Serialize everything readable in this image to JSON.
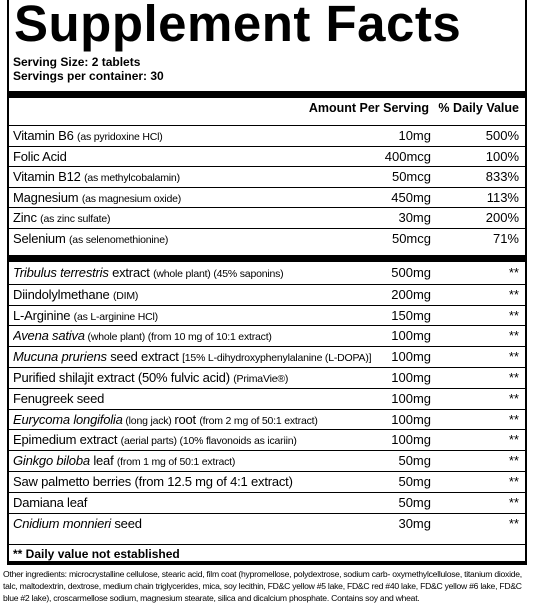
{
  "title": "Supplement Facts",
  "serving_size": "Serving Size: 2 tablets",
  "servings_per_container": "Servings per container: 30",
  "header": {
    "amount": "Amount Per Serving",
    "daily_value": "% Daily Value"
  },
  "sections": [
    {
      "rows": [
        {
          "name": [
            {
              "text": "Vitamin B6 "
            },
            {
              "text": "(as pyridoxine HCl)",
              "style": "small"
            }
          ],
          "amount": "10mg",
          "daily_value": "500%"
        },
        {
          "name": [
            {
              "text": "Folic Acid"
            }
          ],
          "amount": "400mcg",
          "daily_value": "100%"
        },
        {
          "name": [
            {
              "text": "Vitamin B12 "
            },
            {
              "text": "(as methylcobalamin)",
              "style": "small"
            }
          ],
          "amount": "50mcg",
          "daily_value": "833%"
        },
        {
          "name": [
            {
              "text": "Magnesium "
            },
            {
              "text": "(as magnesium oxide)",
              "style": "small"
            }
          ],
          "amount": "450mg",
          "daily_value": "113%"
        },
        {
          "name": [
            {
              "text": "Zinc "
            },
            {
              "text": "(as zinc sulfate)",
              "style": "small"
            }
          ],
          "amount": "30mg",
          "daily_value": "200%"
        },
        {
          "name": [
            {
              "text": "Selenium "
            },
            {
              "text": "(as selenomethionine)",
              "style": "small"
            }
          ],
          "amount": "50mcg",
          "daily_value": "71%"
        }
      ]
    },
    {
      "rows": [
        {
          "name": [
            {
              "text": "Tribulus terrestris",
              "style": "italic"
            },
            {
              "text": " extract "
            },
            {
              "text": "(whole plant) (45% saponins)",
              "style": "small"
            }
          ],
          "amount": "500mg",
          "daily_value": "**"
        },
        {
          "name": [
            {
              "text": "Diindolylmethane "
            },
            {
              "text": "(DIM)",
              "style": "small"
            }
          ],
          "amount": "200mg",
          "daily_value": "**"
        },
        {
          "name": [
            {
              "text": "L-Arginine "
            },
            {
              "text": "(as L-arginine HCl)",
              "style": "small"
            }
          ],
          "amount": "150mg",
          "daily_value": "**"
        },
        {
          "name": [
            {
              "text": "Avena sativa",
              "style": "italic"
            },
            {
              "text": " (whole plant) (from 10 mg of 10:1 extract)",
              "style": "small"
            }
          ],
          "amount": "100mg",
          "daily_value": "**"
        },
        {
          "name": [
            {
              "text": "Mucuna pruriens",
              "style": "italic"
            },
            {
              "text": " seed extract "
            },
            {
              "text": "[15% L-dihydroxyphenylalanine (L-DOPA)]",
              "style": "small"
            }
          ],
          "amount": "100mg",
          "daily_value": "**"
        },
        {
          "name": [
            {
              "text": "Purified shilajit extract (50% fulvic acid) "
            },
            {
              "text": "(PrimaVie®)",
              "style": "small"
            }
          ],
          "amount": "100mg",
          "daily_value": "**"
        },
        {
          "name": [
            {
              "text": "Fenugreek seed"
            }
          ],
          "amount": "100mg",
          "daily_value": "**"
        },
        {
          "name": [
            {
              "text": "Eurycoma longifolia",
              "style": "italic"
            },
            {
              "text": " (long jack) ",
              "style": "small"
            },
            {
              "text": "root "
            },
            {
              "text": "(from 2 mg of 50:1 extract)",
              "style": "small"
            }
          ],
          "amount": "100mg",
          "daily_value": "**"
        },
        {
          "name": [
            {
              "text": "Epimedium extract "
            },
            {
              "text": "(aerial parts) (10% flavonoids as icariin)",
              "style": "small"
            }
          ],
          "amount": "100mg",
          "daily_value": "**"
        },
        {
          "name": [
            {
              "text": "Ginkgo biloba",
              "style": "italic"
            },
            {
              "text": " leaf "
            },
            {
              "text": "(from 1 mg of 50:1 extract)",
              "style": "small"
            }
          ],
          "amount": "50mg",
          "daily_value": "**"
        },
        {
          "name": [
            {
              "text": "Saw palmetto berries (from 12.5 mg of 4:1 extract)"
            }
          ],
          "amount": "50mg",
          "daily_value": "**"
        },
        {
          "name": [
            {
              "text": "Damiana leaf"
            }
          ],
          "amount": "50mg",
          "daily_value": "**"
        },
        {
          "name": [
            {
              "text": "Cnidium monnieri",
              "style": "italic"
            },
            {
              "text": " seed"
            }
          ],
          "amount": "30mg",
          "daily_value": "**"
        }
      ]
    }
  ],
  "footnote": "** Daily value not established",
  "other_ingredients": "Other ingredients: microcrystalline cellulose, stearic acid, film coat (hypromellose, polydextrose, sodium carb- oxymethylcellulose, titanium dioxide, talc, maltodextrin, dextrose, medium chain triglycerides, mica, soy lecithin, FD&C yellow #5 lake, FD&C red #40 lake, FD&C yellow #6 lake, FD&C blue #2 lake), croscarmellose sodium, magnesium stearate, silica and dicalcium phosphate. Contains soy and wheat."
}
